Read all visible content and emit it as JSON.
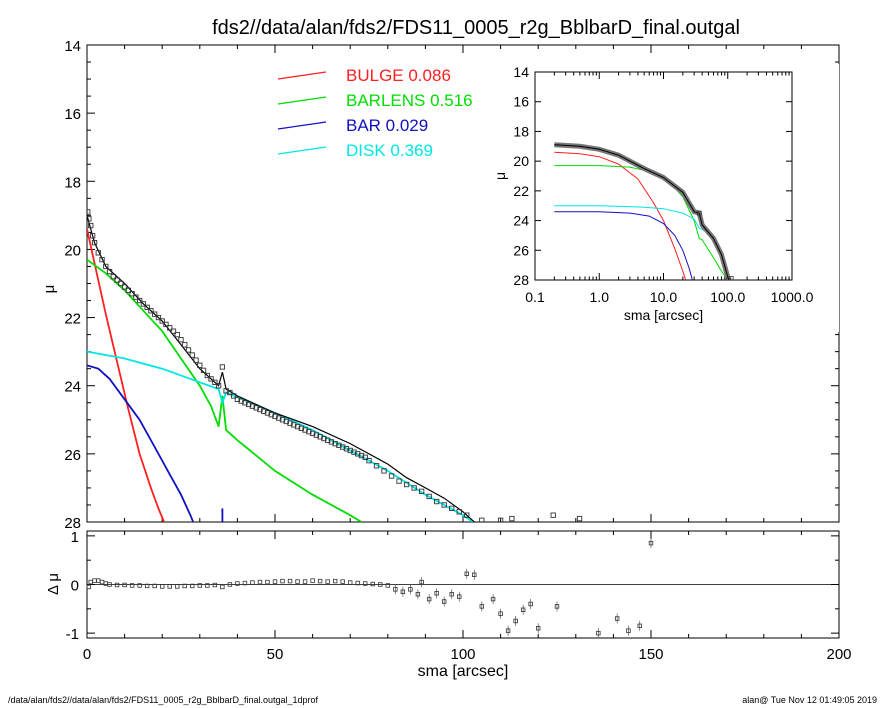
{
  "title": "fds2//data/alan/fds2/FDS11_0005_r2g_BblbarD_final.outgal",
  "footer_left": "/data/alan/fds2//data/alan/fds2/FDS11_0005_r2g_BblbarD_final.outgal_1dprof",
  "footer_right": "alan@  Tue Nov 12 01:49:05 2019",
  "colors": {
    "bulge": "#ff2020",
    "barlens": "#00dd00",
    "bar": "#1010c0",
    "disk": "#00e6e6",
    "data": "#000000"
  },
  "chart_data": [
    {
      "type": "line",
      "name": "main-profile",
      "xlabel": "",
      "ylabel": "μ",
      "xlim": [
        0,
        200
      ],
      "ylim": [
        28,
        14
      ],
      "x_ticks": [
        0,
        50,
        100,
        150,
        200
      ],
      "y_ticks": [
        14,
        16,
        18,
        20,
        22,
        24,
        26,
        28
      ],
      "legend": [
        {
          "label": "BULGE",
          "value": "0.086",
          "color_key": "bulge"
        },
        {
          "label": "BARLENS",
          "value": "0.516",
          "color_key": "barlens"
        },
        {
          "label": "BAR",
          "value": "0.029",
          "color_key": "bar"
        },
        {
          "label": "DISK",
          "value": "0.369",
          "color_key": "disk"
        }
      ],
      "series": [
        {
          "key": "bulge",
          "x": [
            0,
            2,
            5,
            8,
            11,
            14,
            17,
            19,
            20.5,
            21.5
          ],
          "y": [
            19.4,
            20.4,
            21.9,
            23.3,
            24.7,
            26.0,
            27.0,
            27.6,
            28.0,
            28.3
          ]
        },
        {
          "key": "barlens",
          "x": [
            0,
            5,
            10,
            15,
            20,
            25,
            30,
            33,
            35,
            36,
            37,
            40,
            50,
            60,
            70,
            73
          ],
          "y": [
            20.3,
            20.7,
            21.2,
            21.8,
            22.4,
            23.2,
            24.0,
            24.6,
            25.2,
            24.3,
            25.3,
            25.6,
            26.5,
            27.2,
            27.8,
            28.0
          ]
        },
        {
          "key": "bar",
          "x": [
            0,
            3,
            6,
            10,
            14,
            18,
            22,
            25,
            27.5,
            29
          ],
          "y": [
            23.4,
            23.5,
            23.8,
            24.4,
            25.0,
            25.8,
            26.6,
            27.2,
            27.8,
            28.2
          ]
        },
        {
          "key": "bar_spike",
          "x": [
            36,
            36
          ],
          "y": [
            27.6,
            28.0
          ]
        },
        {
          "key": "disk",
          "x": [
            0,
            10,
            20,
            30,
            35,
            36,
            37,
            50,
            60,
            70,
            80,
            90,
            95,
            100,
            104
          ],
          "y": [
            23.0,
            23.2,
            23.5,
            23.9,
            24.1,
            24.5,
            24.2,
            24.8,
            25.3,
            25.9,
            26.5,
            27.2,
            27.5,
            27.8,
            28.1
          ]
        },
        {
          "key": "model",
          "x": [
            0,
            2,
            5,
            10,
            15,
            20,
            25,
            30,
            35,
            36,
            37,
            40,
            50,
            60,
            70,
            80,
            85,
            90,
            95,
            100,
            103
          ],
          "y": [
            19.0,
            19.8,
            20.5,
            21.0,
            21.6,
            22.1,
            22.8,
            23.5,
            24.0,
            23.6,
            24.1,
            24.3,
            24.8,
            25.2,
            25.7,
            26.3,
            26.7,
            27.0,
            27.3,
            27.7,
            28.0
          ]
        }
      ],
      "data_points": {
        "x": [
          0.2,
          0.5,
          1,
          1.5,
          2,
          3,
          4,
          5,
          6,
          7,
          8,
          9,
          10,
          11,
          12,
          13,
          14,
          15,
          16,
          17,
          18,
          19,
          20,
          21,
          22,
          23,
          24,
          25,
          26,
          27,
          28,
          29,
          30,
          31,
          32,
          33,
          34,
          35,
          36,
          37,
          38,
          39,
          40,
          41,
          42,
          43,
          44,
          45,
          46,
          47,
          48,
          49,
          50,
          51,
          52,
          53,
          54,
          55,
          56,
          57,
          58,
          59,
          60,
          61,
          62,
          63,
          64,
          65,
          66,
          67,
          68,
          69,
          70,
          71,
          72,
          73,
          74,
          75,
          77,
          79,
          81,
          83,
          85,
          87,
          89,
          91,
          93,
          95,
          97,
          99,
          101,
          105,
          110,
          113,
          124,
          131
        ],
        "y": [
          18.9,
          19.1,
          19.3,
          19.6,
          19.8,
          20.1,
          20.3,
          20.5,
          20.65,
          20.8,
          20.9,
          21.0,
          21.1,
          21.2,
          21.3,
          21.4,
          21.5,
          21.6,
          21.7,
          21.8,
          21.9,
          22.0,
          22.1,
          22.2,
          22.3,
          22.4,
          22.5,
          22.65,
          22.8,
          22.95,
          23.1,
          23.25,
          23.4,
          23.55,
          23.7,
          23.8,
          23.9,
          24.0,
          23.45,
          24.15,
          24.2,
          24.3,
          24.4,
          24.45,
          24.5,
          24.55,
          24.6,
          24.65,
          24.7,
          24.75,
          24.8,
          24.85,
          24.9,
          24.95,
          25.0,
          25.05,
          25.1,
          25.15,
          25.2,
          25.25,
          25.3,
          25.35,
          25.4,
          25.45,
          25.5,
          25.55,
          25.6,
          25.65,
          25.7,
          25.75,
          25.8,
          25.85,
          25.9,
          25.95,
          26.0,
          26.05,
          26.1,
          26.2,
          26.35,
          26.5,
          26.65,
          26.8,
          26.9,
          27.0,
          27.1,
          27.25,
          27.4,
          27.5,
          27.6,
          27.7,
          27.8,
          27.95,
          27.95,
          27.9,
          27.8,
          27.9
        ]
      }
    },
    {
      "type": "line",
      "name": "inset-log-profile",
      "xlabel": "sma [arcsec]",
      "ylabel": "μ",
      "xscale": "log",
      "xlim": [
        0.1,
        1000
      ],
      "ylim": [
        28,
        14
      ],
      "x_ticks": [
        "0.1",
        "1.0",
        "10.0",
        "100.0",
        "1000.0"
      ],
      "y_ticks": [
        14,
        16,
        18,
        20,
        22,
        24,
        26,
        28
      ],
      "series": [
        {
          "key": "bulge",
          "x": [
            0.2,
            0.5,
            1,
            2,
            4,
            7,
            10,
            15,
            20,
            23
          ],
          "y": [
            19.4,
            19.5,
            19.7,
            20.2,
            21.2,
            22.8,
            24.0,
            25.9,
            27.4,
            28.2
          ]
        },
        {
          "key": "barlens",
          "x": [
            0.2,
            1,
            3,
            6,
            10,
            15,
            20,
            30,
            36,
            40,
            60,
            80,
            100
          ],
          "y": [
            20.3,
            20.3,
            20.4,
            20.7,
            21.2,
            21.8,
            22.4,
            24.0,
            25.2,
            25.3,
            26.5,
            27.4,
            28.0
          ]
        },
        {
          "key": "bar",
          "x": [
            0.2,
            1,
            3,
            6,
            10,
            15,
            20,
            25,
            29
          ],
          "y": [
            23.4,
            23.4,
            23.5,
            23.7,
            24.2,
            25.0,
            26.0,
            27.2,
            28.2
          ]
        },
        {
          "key": "disk",
          "x": [
            0.2,
            1,
            5,
            10,
            20,
            30,
            36,
            50,
            70,
            90,
            104
          ],
          "y": [
            23.0,
            23.0,
            23.1,
            23.2,
            23.5,
            23.9,
            24.5,
            24.8,
            25.9,
            27.2,
            28.1
          ]
        },
        {
          "key": "model",
          "x": [
            0.2,
            0.5,
            1,
            2,
            5,
            10,
            20,
            30,
            36,
            40,
            60,
            80,
            100,
            104
          ],
          "y": [
            18.9,
            19.0,
            19.2,
            19.6,
            20.5,
            21.1,
            22.1,
            23.4,
            23.5,
            24.3,
            25.2,
            26.3,
            27.8,
            28.0
          ]
        }
      ]
    },
    {
      "type": "scatter",
      "name": "residuals",
      "xlabel": "sma [arcsec]",
      "ylabel": "Δ μ",
      "xlim": [
        0,
        200
      ],
      "ylim": [
        -1.1,
        1.1
      ],
      "x_ticks": [
        0,
        50,
        100,
        150,
        200
      ],
      "y_ticks": [
        1,
        0,
        -1
      ],
      "x": [
        0.5,
        1,
        2,
        3,
        4,
        5,
        6,
        8,
        10,
        12,
        14,
        16,
        18,
        20,
        22,
        24,
        26,
        28,
        30,
        32,
        34,
        36,
        38,
        40,
        42,
        44,
        46,
        48,
        50,
        52,
        54,
        56,
        58,
        60,
        62,
        64,
        66,
        68,
        70,
        72,
        74,
        76,
        78,
        80,
        82,
        84,
        86,
        88,
        89,
        91,
        93,
        95,
        97,
        99,
        101,
        103,
        105,
        108,
        110,
        112,
        114,
        116,
        118,
        120,
        125,
        136,
        141,
        144,
        147,
        150
      ],
      "y": [
        -0.05,
        0.05,
        0.08,
        0.08,
        0.05,
        0.02,
        0.0,
        -0.01,
        -0.01,
        -0.02,
        -0.02,
        -0.03,
        -0.03,
        -0.04,
        -0.04,
        -0.04,
        -0.03,
        -0.03,
        -0.02,
        -0.02,
        -0.01,
        -0.05,
        0.0,
        0.02,
        0.03,
        0.04,
        0.05,
        0.05,
        0.06,
        0.07,
        0.07,
        0.06,
        0.06,
        0.08,
        0.07,
        0.06,
        0.07,
        0.06,
        0.04,
        0.03,
        0.02,
        0.01,
        0.0,
        -0.02,
        -0.1,
        -0.15,
        -0.1,
        -0.2,
        0.05,
        -0.3,
        -0.18,
        -0.35,
        -0.2,
        -0.25,
        0.22,
        0.2,
        -0.45,
        -0.3,
        -0.6,
        -0.95,
        -0.75,
        -0.52,
        -0.4,
        -0.9,
        -0.45,
        -1.0,
        -0.7,
        -0.95,
        -0.85,
        0.85
      ]
    }
  ]
}
